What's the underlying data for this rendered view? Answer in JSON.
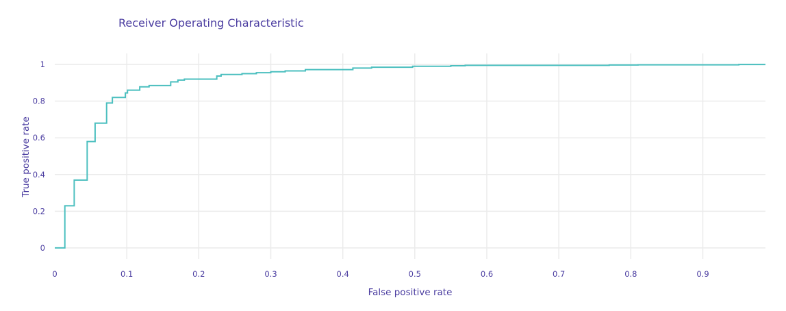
{
  "chart_data": {
    "type": "line",
    "title": "Receiver Operating Characteristic",
    "xlabel": "False positive rate",
    "ylabel": "True positive rate",
    "xlim": [
      0,
      0.987
    ],
    "ylim": [
      -0.06,
      1.06
    ],
    "xticks": [
      0,
      0.1,
      0.2,
      0.3,
      0.4,
      0.5,
      0.6,
      0.7,
      0.8,
      0.9
    ],
    "xtick_labels": [
      "0",
      "0.1",
      "0.2",
      "0.3",
      "0.4",
      "0.5",
      "0.6",
      "0.7",
      "0.8",
      "0.9"
    ],
    "yticks": [
      0,
      0.2,
      0.4,
      0.6,
      0.8,
      1
    ],
    "ytick_labels": [
      "0",
      "0.2",
      "0.4",
      "0.6",
      "0.8",
      "1"
    ],
    "grid": true,
    "line_shape": "step",
    "color": "#4bbfbf",
    "series": [
      {
        "x": [
          0,
          0.014,
          0.014,
          0.027,
          0.027,
          0.045,
          0.045,
          0.056,
          0.056,
          0.072,
          0.072,
          0.08,
          0.08,
          0.098,
          0.098,
          0.101,
          0.101,
          0.118,
          0.118,
          0.131,
          0.131,
          0.161,
          0.161,
          0.171,
          0.171,
          0.18,
          0.18,
          0.21,
          0.225,
          0.225,
          0.231,
          0.231,
          0.26,
          0.26,
          0.28,
          0.28,
          0.3,
          0.3,
          0.32,
          0.32,
          0.348,
          0.348,
          0.414,
          0.414,
          0.44,
          0.44,
          0.497,
          0.497,
          0.55,
          0.55,
          0.57,
          0.57,
          0.77,
          0.77,
          0.81,
          0.81,
          0.95,
          0.95,
          0.987
        ],
        "y": [
          0,
          0,
          0.23,
          0.23,
          0.37,
          0.37,
          0.58,
          0.58,
          0.68,
          0.68,
          0.79,
          0.79,
          0.82,
          0.82,
          0.845,
          0.845,
          0.86,
          0.86,
          0.878,
          0.878,
          0.885,
          0.885,
          0.905,
          0.905,
          0.915,
          0.915,
          0.92,
          0.92,
          0.92,
          0.937,
          0.937,
          0.945,
          0.945,
          0.95,
          0.95,
          0.955,
          0.955,
          0.96,
          0.96,
          0.965,
          0.965,
          0.972,
          0.972,
          0.98,
          0.98,
          0.985,
          0.985,
          0.99,
          0.99,
          0.993,
          0.993,
          0.995,
          0.995,
          0.997,
          0.997,
          0.998,
          0.998,
          1.0,
          1.0
        ]
      }
    ]
  }
}
